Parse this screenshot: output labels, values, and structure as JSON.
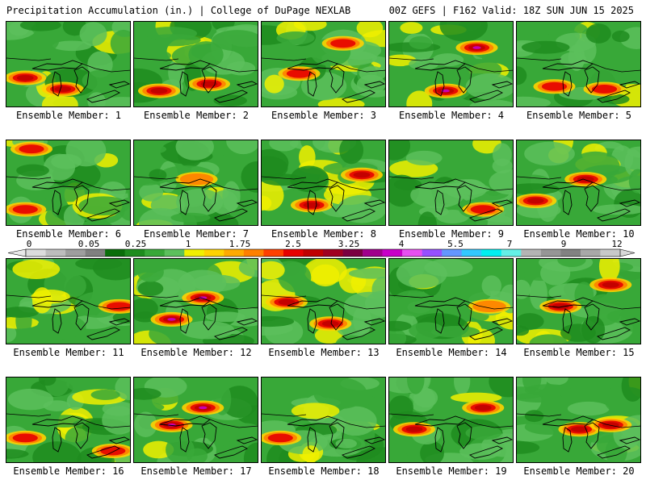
{
  "header": {
    "left_title": "Precipitation Accumulation (in.) | College of DuPage NEXLAB",
    "right_title": "00Z GEFS | F162 Valid: 18Z SUN JUN 15 2025"
  },
  "panels": [
    {
      "label": "Ensemble Member: 1",
      "heavy": [
        [
          0.15,
          0.65
        ],
        [
          0.45,
          0.78
        ]
      ],
      "max": 3
    },
    {
      "label": "Ensemble Member: 2",
      "heavy": [
        [
          0.2,
          0.8
        ],
        [
          0.6,
          0.72
        ]
      ],
      "max": 3
    },
    {
      "label": "Ensemble Member: 3",
      "heavy": [
        [
          0.3,
          0.6
        ],
        [
          0.65,
          0.25
        ]
      ],
      "max": 2
    },
    {
      "label": "Ensemble Member: 4",
      "heavy": [
        [
          0.45,
          0.8
        ],
        [
          0.7,
          0.3
        ]
      ],
      "max": 5
    },
    {
      "label": "Ensemble Member: 5",
      "heavy": [
        [
          0.3,
          0.75
        ],
        [
          0.7,
          0.78
        ]
      ],
      "max": 2
    },
    {
      "label": "Ensemble Member: 6",
      "heavy": [
        [
          0.15,
          0.8
        ],
        [
          0.2,
          0.1
        ]
      ],
      "max": 2
    },
    {
      "label": "Ensemble Member: 7",
      "heavy": [
        [
          0.5,
          0.45
        ]
      ],
      "max": 1
    },
    {
      "label": "Ensemble Member: 8",
      "heavy": [
        [
          0.4,
          0.75
        ],
        [
          0.8,
          0.4
        ]
      ],
      "max": 3
    },
    {
      "label": "Ensemble Member: 9",
      "heavy": [
        [
          0.75,
          0.8
        ]
      ],
      "max": 2
    },
    {
      "label": "Ensemble Member: 10",
      "heavy": [
        [
          0.55,
          0.45
        ],
        [
          0.15,
          0.7
        ]
      ],
      "max": 3
    },
    {
      "label": "Ensemble Member: 11",
      "heavy": [
        [
          0.9,
          0.55
        ]
      ],
      "max": 2
    },
    {
      "label": "Ensemble Member: 12",
      "heavy": [
        [
          0.3,
          0.7
        ],
        [
          0.55,
          0.45
        ]
      ],
      "max": 5
    },
    {
      "label": "Ensemble Member: 13",
      "heavy": [
        [
          0.2,
          0.5
        ],
        [
          0.55,
          0.75
        ]
      ],
      "max": 3
    },
    {
      "label": "Ensemble Member: 14",
      "heavy": [
        [
          0.8,
          0.55
        ]
      ],
      "max": 1
    },
    {
      "label": "Ensemble Member: 15",
      "heavy": [
        [
          0.35,
          0.55
        ],
        [
          0.75,
          0.3
        ]
      ],
      "max": 3
    },
    {
      "label": "Ensemble Member: 16",
      "heavy": [
        [
          0.85,
          0.85
        ],
        [
          0.15,
          0.7
        ]
      ],
      "max": 2
    },
    {
      "label": "Ensemble Member: 17",
      "heavy": [
        [
          0.55,
          0.35
        ],
        [
          0.3,
          0.55
        ]
      ],
      "max": 5
    },
    {
      "label": "Ensemble Member: 18",
      "heavy": [
        [
          0.15,
          0.7
        ]
      ],
      "max": 2
    },
    {
      "label": "Ensemble Member: 19",
      "heavy": [
        [
          0.2,
          0.6
        ],
        [
          0.75,
          0.35
        ]
      ],
      "max": 3
    },
    {
      "label": "Ensemble Member: 20",
      "heavy": [
        [
          0.5,
          0.6
        ],
        [
          0.75,
          0.55
        ]
      ],
      "max": 3
    }
  ],
  "colorbar": {
    "labels": [
      "0",
      "0.05",
      "0.25",
      "1",
      "1.75",
      "2.5",
      "3.25",
      "4",
      "5.5",
      "7",
      "9",
      "12"
    ],
    "colors": [
      "#dcdcdc",
      "#bdbdbd",
      "#9e9e9e",
      "#808080",
      "#0a6e0a",
      "#1e8c1e",
      "#38a838",
      "#5cc05c",
      "#f0f000",
      "#ffd200",
      "#ffaa00",
      "#ff8000",
      "#ff4000",
      "#e60000",
      "#c00000",
      "#a00020",
      "#7a0040",
      "#a0008c",
      "#c800c8",
      "#e650f0",
      "#9650ff",
      "#6496ff",
      "#32c8ff",
      "#00f0f0",
      "#64f0e6",
      "#b4b4b4",
      "#969696",
      "#828282",
      "#a8a8a8",
      "#c8c8c8"
    ]
  }
}
